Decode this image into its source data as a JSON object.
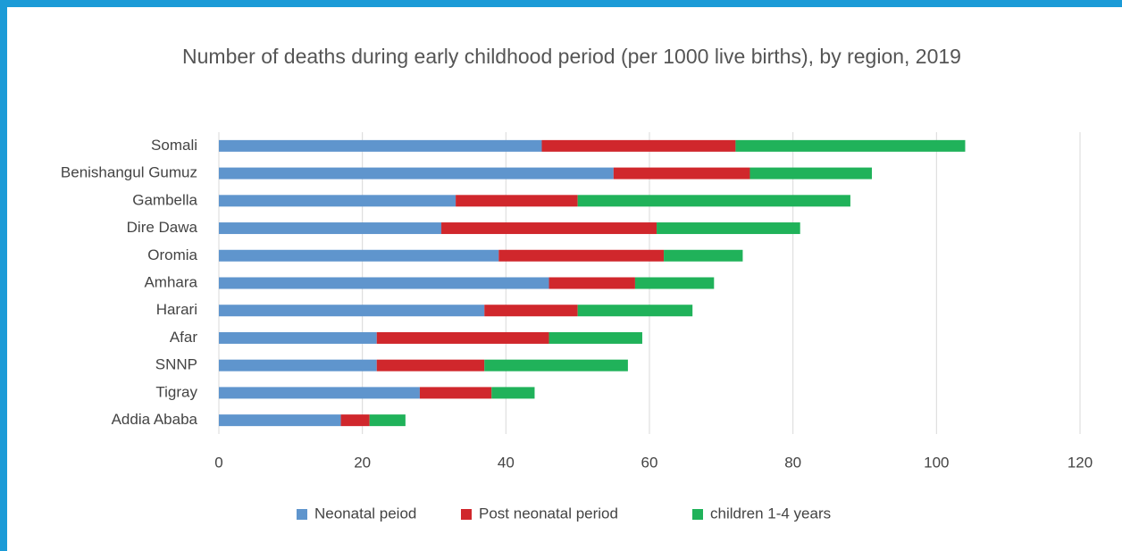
{
  "chart_data": {
    "type": "stacked_bar_horizontal",
    "title": "Number of deaths during early childhood period (per 1000 live births), by region, 2019",
    "categories": [
      "Somali",
      "Benishangul Gumuz",
      "Gambella",
      "Dire Dawa",
      "Oromia",
      "Amhara",
      "Harari",
      "Afar",
      "SNNP",
      "Tigray",
      "Addia Ababa"
    ],
    "series": [
      {
        "name": "Neonatal peiod",
        "color": "#5f95cd",
        "values": [
          45,
          55,
          33,
          31,
          39,
          46,
          37,
          22,
          22,
          28,
          17
        ]
      },
      {
        "name": "Post neonatal period",
        "color": "#d0272c",
        "values": [
          27,
          19,
          17,
          30,
          23,
          12,
          13,
          24,
          15,
          10,
          4
        ]
      },
      {
        "name": "children 1-4 years",
        "color": "#20b25a",
        "values": [
          32,
          17,
          38,
          20,
          11,
          11,
          16,
          13,
          20,
          6,
          5
        ]
      }
    ],
    "xlim": [
      0,
      120
    ],
    "xticks": [
      0,
      20,
      40,
      60,
      80,
      100,
      120
    ],
    "grid": true,
    "legend": "bottom"
  }
}
